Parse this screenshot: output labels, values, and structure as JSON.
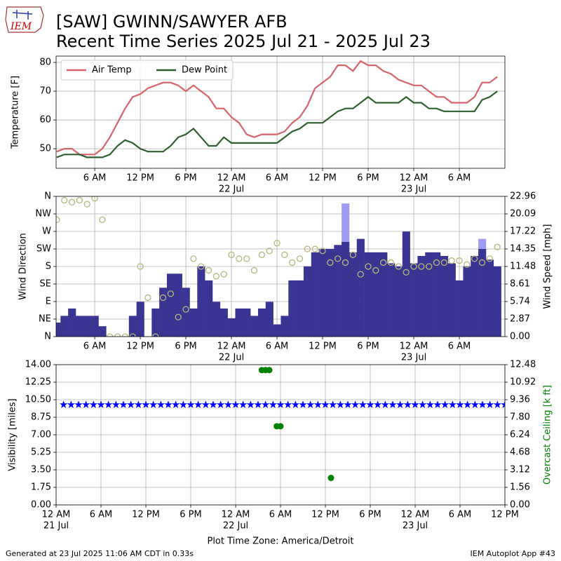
{
  "header": {
    "logo_text": "IEM",
    "title": "[SAW] GWINN/SAWYER AFB",
    "subtitle": "Recent Time Series 2025 Jul 21 - 2025 Jul 23"
  },
  "chart_data": [
    {
      "type": "line",
      "ylabel": "Temperature [F]",
      "grid": true,
      "legend": "upper left",
      "xlim": [
        "2025-07-21 00:55",
        "2025-07-23 12:00"
      ],
      "xticks": [
        {
          "value": "2025-07-21 06:00",
          "label": "6 AM"
        },
        {
          "value": "2025-07-21 12:00",
          "label": "12 PM"
        },
        {
          "value": "2025-07-21 18:00",
          "label": "6 PM"
        },
        {
          "value": "2025-07-22 00:00",
          "label": "12 AM"
        },
        {
          "value": "2025-07-22 06:00",
          "label": "6 AM"
        },
        {
          "value": "2025-07-22 12:00",
          "label": "12 PM"
        },
        {
          "value": "2025-07-22 18:00",
          "label": "6 PM"
        },
        {
          "value": "2025-07-23 00:00",
          "label": "12 AM"
        },
        {
          "value": "2025-07-23 06:00",
          "label": "6 AM"
        }
      ],
      "date_ticks": [
        {
          "value": "2025-07-22 00:00",
          "label": "22 Jul"
        },
        {
          "value": "2025-07-23 00:00",
          "label": "23 Jul"
        }
      ],
      "ylim": [
        43.2,
        82.2
      ],
      "yticks": [
        50,
        60,
        70,
        80
      ],
      "x": [
        "2025-07-21 01:00",
        "2025-07-21 02:00",
        "2025-07-21 03:00",
        "2025-07-21 04:00",
        "2025-07-21 05:00",
        "2025-07-21 06:00",
        "2025-07-21 07:00",
        "2025-07-21 08:00",
        "2025-07-21 09:00",
        "2025-07-21 10:00",
        "2025-07-21 11:00",
        "2025-07-21 12:00",
        "2025-07-21 13:00",
        "2025-07-21 14:00",
        "2025-07-21 15:00",
        "2025-07-21 16:00",
        "2025-07-21 17:00",
        "2025-07-21 18:00",
        "2025-07-21 19:00",
        "2025-07-21 20:00",
        "2025-07-21 21:00",
        "2025-07-21 22:00",
        "2025-07-21 23:00",
        "2025-07-22 00:00",
        "2025-07-22 01:00",
        "2025-07-22 02:00",
        "2025-07-22 03:00",
        "2025-07-22 04:00",
        "2025-07-22 05:00",
        "2025-07-22 06:00",
        "2025-07-22 07:00",
        "2025-07-22 08:00",
        "2025-07-22 09:00",
        "2025-07-22 10:00",
        "2025-07-22 11:00",
        "2025-07-22 12:00",
        "2025-07-22 13:00",
        "2025-07-22 14:00",
        "2025-07-22 15:00",
        "2025-07-22 16:00",
        "2025-07-22 17:00",
        "2025-07-22 18:00",
        "2025-07-22 19:00",
        "2025-07-22 20:00",
        "2025-07-22 21:00",
        "2025-07-22 22:00",
        "2025-07-22 23:00",
        "2025-07-23 00:00",
        "2025-07-23 01:00",
        "2025-07-23 02:00",
        "2025-07-23 03:00",
        "2025-07-23 04:00",
        "2025-07-23 05:00",
        "2025-07-23 06:00",
        "2025-07-23 07:00",
        "2025-07-23 08:00",
        "2025-07-23 09:00",
        "2025-07-23 10:00",
        "2025-07-23 11:00"
      ],
      "series": [
        {
          "name": "Air Temp",
          "color": "#d9626b",
          "values": [
            49,
            50,
            50,
            48,
            48,
            48,
            50,
            54,
            59,
            64,
            68,
            69,
            71,
            72,
            73,
            73,
            72,
            70,
            72,
            70,
            68,
            64,
            64,
            61,
            59,
            55,
            54,
            55,
            55,
            55,
            56,
            59,
            61,
            65,
            71,
            73,
            75,
            79,
            79,
            77,
            80.5,
            79,
            79,
            77,
            76,
            74,
            73,
            72,
            72,
            70,
            68,
            68,
            66,
            66,
            66,
            68,
            73,
            73,
            75
          ]
        },
        {
          "name": "Dew Point",
          "color": "#2f5f2f",
          "values": [
            47,
            48,
            48,
            48,
            47,
            47,
            47,
            48,
            51,
            53,
            52,
            50,
            49,
            49,
            49,
            51,
            54,
            55,
            57,
            54,
            51,
            51,
            54,
            52,
            52,
            52,
            52,
            52,
            52,
            52,
            54,
            56,
            57,
            59,
            59,
            59,
            61,
            63,
            64,
            64,
            66,
            68,
            66,
            66,
            66,
            66,
            68,
            66,
            66,
            64,
            64,
            63,
            63,
            63,
            63,
            63,
            67,
            68,
            70
          ]
        }
      ]
    },
    {
      "type": "combo",
      "ylabel": "Wind Direction",
      "y2label": "Wind Speed [mph]",
      "grid": true,
      "xlim": [
        "2025-07-21 00:55",
        "2025-07-23 12:00"
      ],
      "xticks": [
        {
          "value": "2025-07-21 06:00",
          "label": "6 AM"
        },
        {
          "value": "2025-07-21 12:00",
          "label": "12 PM"
        },
        {
          "value": "2025-07-21 18:00",
          "label": "6 PM"
        },
        {
          "value": "2025-07-22 00:00",
          "label": "12 AM"
        },
        {
          "value": "2025-07-22 06:00",
          "label": "6 AM"
        },
        {
          "value": "2025-07-22 12:00",
          "label": "12 PM"
        },
        {
          "value": "2025-07-22 18:00",
          "label": "6 PM"
        },
        {
          "value": "2025-07-23 00:00",
          "label": "12 AM"
        },
        {
          "value": "2025-07-23 06:00",
          "label": "6 AM"
        }
      ],
      "date_ticks": [
        {
          "value": "2025-07-22 00:00",
          "label": "22 Jul"
        },
        {
          "value": "2025-07-23 00:00",
          "label": "23 Jul"
        }
      ],
      "ylim": [
        0,
        360
      ],
      "yticks": [
        {
          "value": 0,
          "label": "N"
        },
        {
          "value": 45,
          "label": "NE"
        },
        {
          "value": 90,
          "label": "E"
        },
        {
          "value": 135,
          "label": "SE"
        },
        {
          "value": 180,
          "label": "S"
        },
        {
          "value": 225,
          "label": "SW"
        },
        {
          "value": 270,
          "label": "W"
        },
        {
          "value": 315,
          "label": "NW"
        },
        {
          "value": 360,
          "label": "N"
        }
      ],
      "y2lim": [
        0,
        22.96
      ],
      "y2ticks": [
        {
          "value": 0,
          "label": "0.00"
        },
        2.87,
        5.74,
        8.61,
        11.48,
        14.35,
        17.22,
        20.09,
        22.96
      ],
      "x": [
        "2025-07-21 01:00",
        "2025-07-21 02:00",
        "2025-07-21 03:00",
        "2025-07-21 04:00",
        "2025-07-21 05:00",
        "2025-07-21 06:00",
        "2025-07-21 07:00",
        "2025-07-21 08:00",
        "2025-07-21 09:00",
        "2025-07-21 10:00",
        "2025-07-21 11:00",
        "2025-07-21 12:00",
        "2025-07-21 13:00",
        "2025-07-21 14:00",
        "2025-07-21 15:00",
        "2025-07-21 16:00",
        "2025-07-21 17:00",
        "2025-07-21 18:00",
        "2025-07-21 19:00",
        "2025-07-21 20:00",
        "2025-07-21 21:00",
        "2025-07-21 22:00",
        "2025-07-21 23:00",
        "2025-07-22 00:00",
        "2025-07-22 01:00",
        "2025-07-22 02:00",
        "2025-07-22 03:00",
        "2025-07-22 04:00",
        "2025-07-22 05:00",
        "2025-07-22 06:00",
        "2025-07-22 07:00",
        "2025-07-22 08:00",
        "2025-07-22 09:00",
        "2025-07-22 10:00",
        "2025-07-22 11:00",
        "2025-07-22 12:00",
        "2025-07-22 13:00",
        "2025-07-22 14:00",
        "2025-07-22 15:00",
        "2025-07-22 16:00",
        "2025-07-22 17:00",
        "2025-07-22 18:00",
        "2025-07-22 19:00",
        "2025-07-22 20:00",
        "2025-07-22 21:00",
        "2025-07-22 22:00",
        "2025-07-22 23:00",
        "2025-07-23 00:00",
        "2025-07-23 01:00",
        "2025-07-23 02:00",
        "2025-07-23 03:00",
        "2025-07-23 04:00",
        "2025-07-23 05:00",
        "2025-07-23 06:00",
        "2025-07-23 07:00",
        "2025-07-23 08:00",
        "2025-07-23 09:00",
        "2025-07-23 10:00",
        "2025-07-23 11:00"
      ],
      "series": [
        {
          "type": "bar",
          "axis": "y2",
          "color": "#9e9cf2",
          "values": [
            null,
            null,
            null,
            null,
            null,
            null,
            null,
            null,
            null,
            null,
            null,
            null,
            null,
            null,
            null,
            null,
            null,
            null,
            null,
            null,
            null,
            null,
            null,
            null,
            null,
            null,
            null,
            null,
            null,
            null,
            null,
            null,
            null,
            null,
            null,
            null,
            null,
            null,
            21.8,
            null,
            null,
            null,
            null,
            null,
            null,
            null,
            null,
            null,
            null,
            null,
            null,
            null,
            null,
            null,
            null,
            null,
            16,
            null,
            null
          ]
        },
        {
          "type": "bar",
          "axis": "y2",
          "color": "#3a3592",
          "values": [
            2.3,
            3.4,
            4.6,
            3.4,
            3.4,
            3.4,
            1.7,
            0,
            0,
            0,
            3.4,
            5.7,
            0,
            4.6,
            8,
            10.3,
            10.3,
            8,
            4.6,
            11.5,
            9.2,
            5.7,
            4.6,
            3,
            4.6,
            4.6,
            3.4,
            4.6,
            5.7,
            2,
            3.4,
            9.2,
            9.2,
            11.5,
            13.8,
            14.35,
            14.35,
            15,
            15.5,
            13.8,
            16,
            13.8,
            13.8,
            13.8,
            12,
            11.5,
            17.2,
            12,
            13.2,
            13.8,
            13.8,
            13.2,
            12,
            9.2,
            11.5,
            13.2,
            14.35,
            12.6,
            11.5
          ]
        },
        {
          "type": "scatter",
          "marker": "circle",
          "color": "#b5b77a",
          "values": [
            300,
            350,
            345,
            350,
            340,
            355,
            300,
            0,
            0,
            0,
            0,
            180,
            100,
            0,
            100,
            110,
            50,
            70,
            200,
            180,
            170,
            155,
            160,
            210,
            200,
            200,
            170,
            210,
            220,
            240,
            210,
            190,
            200,
            225,
            225,
            220,
            190,
            200,
            190,
            210,
            160,
            180,
            170,
            190,
            190,
            180,
            165,
            180,
            180,
            180,
            190,
            190,
            195,
            195,
            185,
            200,
            190,
            200,
            230
          ]
        }
      ]
    },
    {
      "type": "combo",
      "ylabel": "Visibility [miles]",
      "y2label": "Overcast Ceiling [k ft]",
      "y2label_color": "#008000",
      "xlabel": "Plot Time Zone: America/Detroit",
      "grid": true,
      "xlim": [
        "2025-07-21 00:00",
        "2025-07-23 12:00"
      ],
      "xticks": [
        {
          "value": "2025-07-21 00:00",
          "label": "12 AM"
        },
        {
          "value": "2025-07-21 06:00",
          "label": "6 AM"
        },
        {
          "value": "2025-07-21 12:00",
          "label": "12 PM"
        },
        {
          "value": "2025-07-21 18:00",
          "label": "6 PM"
        },
        {
          "value": "2025-07-22 00:00",
          "label": "12 AM"
        },
        {
          "value": "2025-07-22 06:00",
          "label": "6 AM"
        },
        {
          "value": "2025-07-22 12:00",
          "label": "12 PM"
        },
        {
          "value": "2025-07-22 18:00",
          "label": "6 PM"
        },
        {
          "value": "2025-07-23 00:00",
          "label": "12 AM"
        },
        {
          "value": "2025-07-23 06:00",
          "label": "6 AM"
        },
        {
          "value": "2025-07-23 12:00",
          "label": "12 PM"
        }
      ],
      "date_ticks": [
        {
          "value": "2025-07-21 00:00",
          "label": "21 Jul"
        },
        {
          "value": "2025-07-22 00:00",
          "label": "22 Jul"
        },
        {
          "value": "2025-07-23 00:00",
          "label": "23 Jul"
        }
      ],
      "ylim": [
        0,
        14
      ],
      "yticks": [
        {
          "value": 0,
          "label": "0.00"
        },
        {
          "value": 1.75,
          "label": "1.75"
        },
        {
          "value": 3.5,
          "label": "3.50"
        },
        {
          "value": 5.25,
          "label": "5.25"
        },
        {
          "value": 7,
          "label": "7.00"
        },
        {
          "value": 8.75,
          "label": "8.75"
        },
        {
          "value": 10.5,
          "label": "10.50"
        },
        {
          "value": 12.25,
          "label": "12.25"
        },
        {
          "value": 14,
          "label": "14.00"
        }
      ],
      "y2lim": [
        0,
        12.48
      ],
      "y2ticks": [
        {
          "value": 0,
          "label": "0.00"
        },
        1.56,
        3.12,
        4.68,
        6.24,
        {
          "value": 7.8,
          "label": "7.80"
        },
        9.36,
        10.92,
        12.48
      ],
      "series": [
        {
          "type": "scatter",
          "marker": "star",
          "color": "#0000ff",
          "x": [
            "2025-07-21 01:00",
            "2025-07-21 02:00",
            "2025-07-21 03:00",
            "2025-07-21 04:00",
            "2025-07-21 05:00",
            "2025-07-21 06:00",
            "2025-07-21 07:00",
            "2025-07-21 08:00",
            "2025-07-21 09:00",
            "2025-07-21 10:00",
            "2025-07-21 11:00",
            "2025-07-21 12:00",
            "2025-07-21 13:00",
            "2025-07-21 14:00",
            "2025-07-21 15:00",
            "2025-07-21 16:00",
            "2025-07-21 17:00",
            "2025-07-21 18:00",
            "2025-07-21 19:00",
            "2025-07-21 20:00",
            "2025-07-21 21:00",
            "2025-07-21 22:00",
            "2025-07-21 23:00",
            "2025-07-22 00:00",
            "2025-07-22 01:00",
            "2025-07-22 02:00",
            "2025-07-22 03:00",
            "2025-07-22 04:00",
            "2025-07-22 05:00",
            "2025-07-22 06:00",
            "2025-07-22 07:00",
            "2025-07-22 08:00",
            "2025-07-22 09:00",
            "2025-07-22 10:00",
            "2025-07-22 11:00",
            "2025-07-22 12:00",
            "2025-07-22 13:00",
            "2025-07-22 14:00",
            "2025-07-22 15:00",
            "2025-07-22 16:00",
            "2025-07-22 17:00",
            "2025-07-22 18:00",
            "2025-07-22 19:00",
            "2025-07-22 20:00",
            "2025-07-22 21:00",
            "2025-07-22 22:00",
            "2025-07-22 23:00",
            "2025-07-23 00:00",
            "2025-07-23 01:00",
            "2025-07-23 02:00",
            "2025-07-23 03:00",
            "2025-07-23 04:00",
            "2025-07-23 05:00",
            "2025-07-23 06:00",
            "2025-07-23 07:00",
            "2025-07-23 08:00",
            "2025-07-23 09:00",
            "2025-07-23 10:00",
            "2025-07-23 11:00",
            "2025-07-23 12:00"
          ],
          "values": [
            10,
            10,
            10,
            10,
            10,
            10,
            10,
            10,
            10,
            10,
            10,
            10,
            10,
            10,
            10,
            10,
            10,
            10,
            10,
            10,
            10,
            10,
            10,
            10,
            10,
            10,
            10,
            10,
            10,
            10,
            10,
            10,
            10,
            10,
            10,
            10,
            10,
            10,
            10,
            10,
            10,
            10,
            10,
            10,
            10,
            10,
            10,
            10,
            10,
            10,
            10,
            10,
            10,
            10,
            10,
            10,
            10,
            10,
            10,
            10
          ]
        },
        {
          "type": "scatter",
          "marker": "dot",
          "color": "#008000",
          "axis": "y2",
          "x": [
            "2025-07-22 03:30",
            "2025-07-22 04:00",
            "2025-07-22 04:30",
            "2025-07-22 05:30",
            "2025-07-22 06:00",
            "2025-07-22 12:45"
          ],
          "values": [
            12,
            12,
            12,
            7,
            7,
            2.4
          ]
        }
      ]
    }
  ],
  "footer": {
    "left": "Generated at 23 Jul 2025 11:06 AM CDT in 0.33s",
    "right": "IEM Autoplot App #43"
  }
}
